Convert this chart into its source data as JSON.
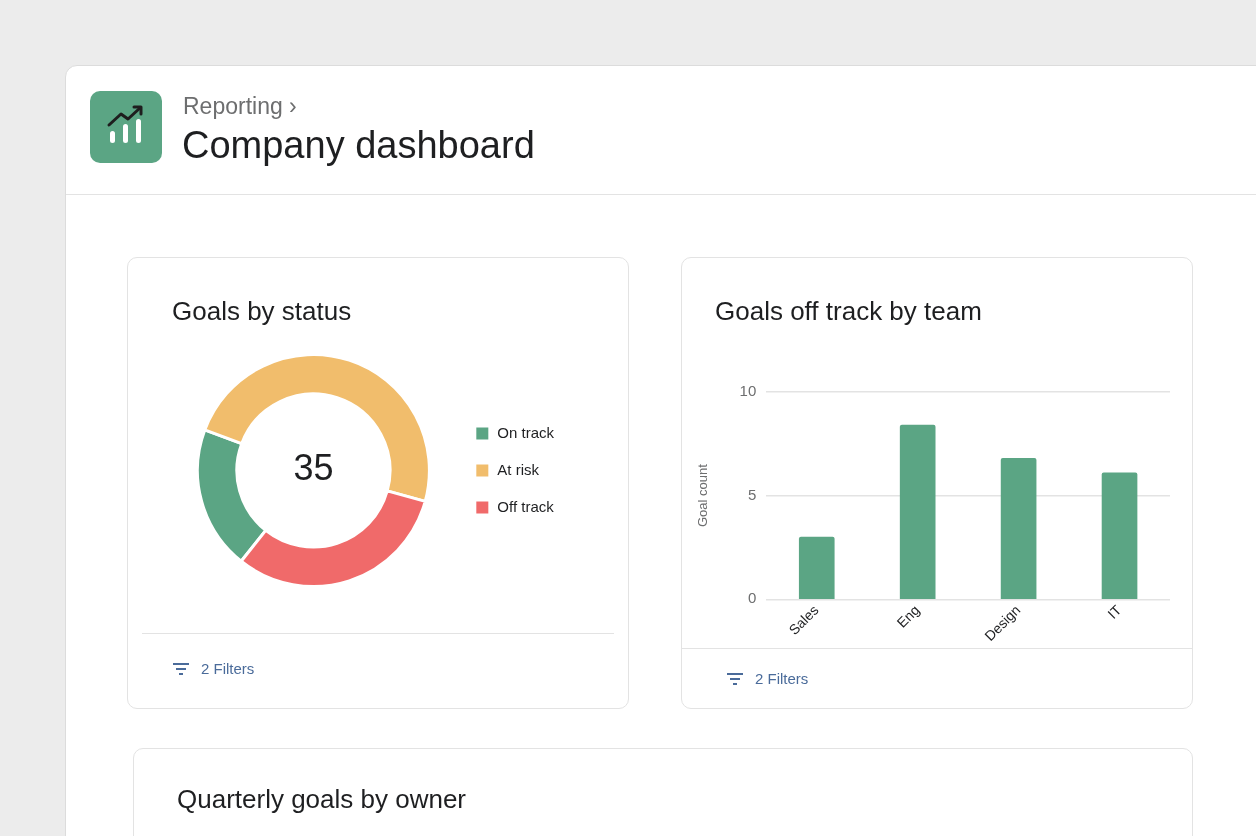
{
  "chart_data": [
    {
      "type": "other",
      "title": "Company dashboard",
      "subtitle": "Reporting ›"
    },
    {
      "type": "donut",
      "title": "Goals by status",
      "categories": [
        "On track",
        "At risk",
        "Off track"
      ],
      "values": [
        20,
        48.6,
        31.4
      ],
      "colors": [
        "#5ba584",
        "#f1bd6c",
        "#f06a6a"
      ],
      "legend": "right",
      "annotations": [
        "35",
        "2 Filters"
      ]
    },
    {
      "type": "bar",
      "title": "Goals off track by team",
      "ylabel": "Goal count",
      "categories": [
        "Sales",
        "Eng",
        "Design",
        "IT"
      ],
      "values": [
        3,
        8.4,
        6.8,
        6.1
      ],
      "color": "#5ba584",
      "ylim": [
        0,
        10
      ],
      "yticks": [
        0,
        5,
        10
      ],
      "grid": "y",
      "annotations": [
        "2 Filters"
      ]
    },
    {
      "type": "other",
      "title": "Quarterly goals by owner"
    }
  ]
}
